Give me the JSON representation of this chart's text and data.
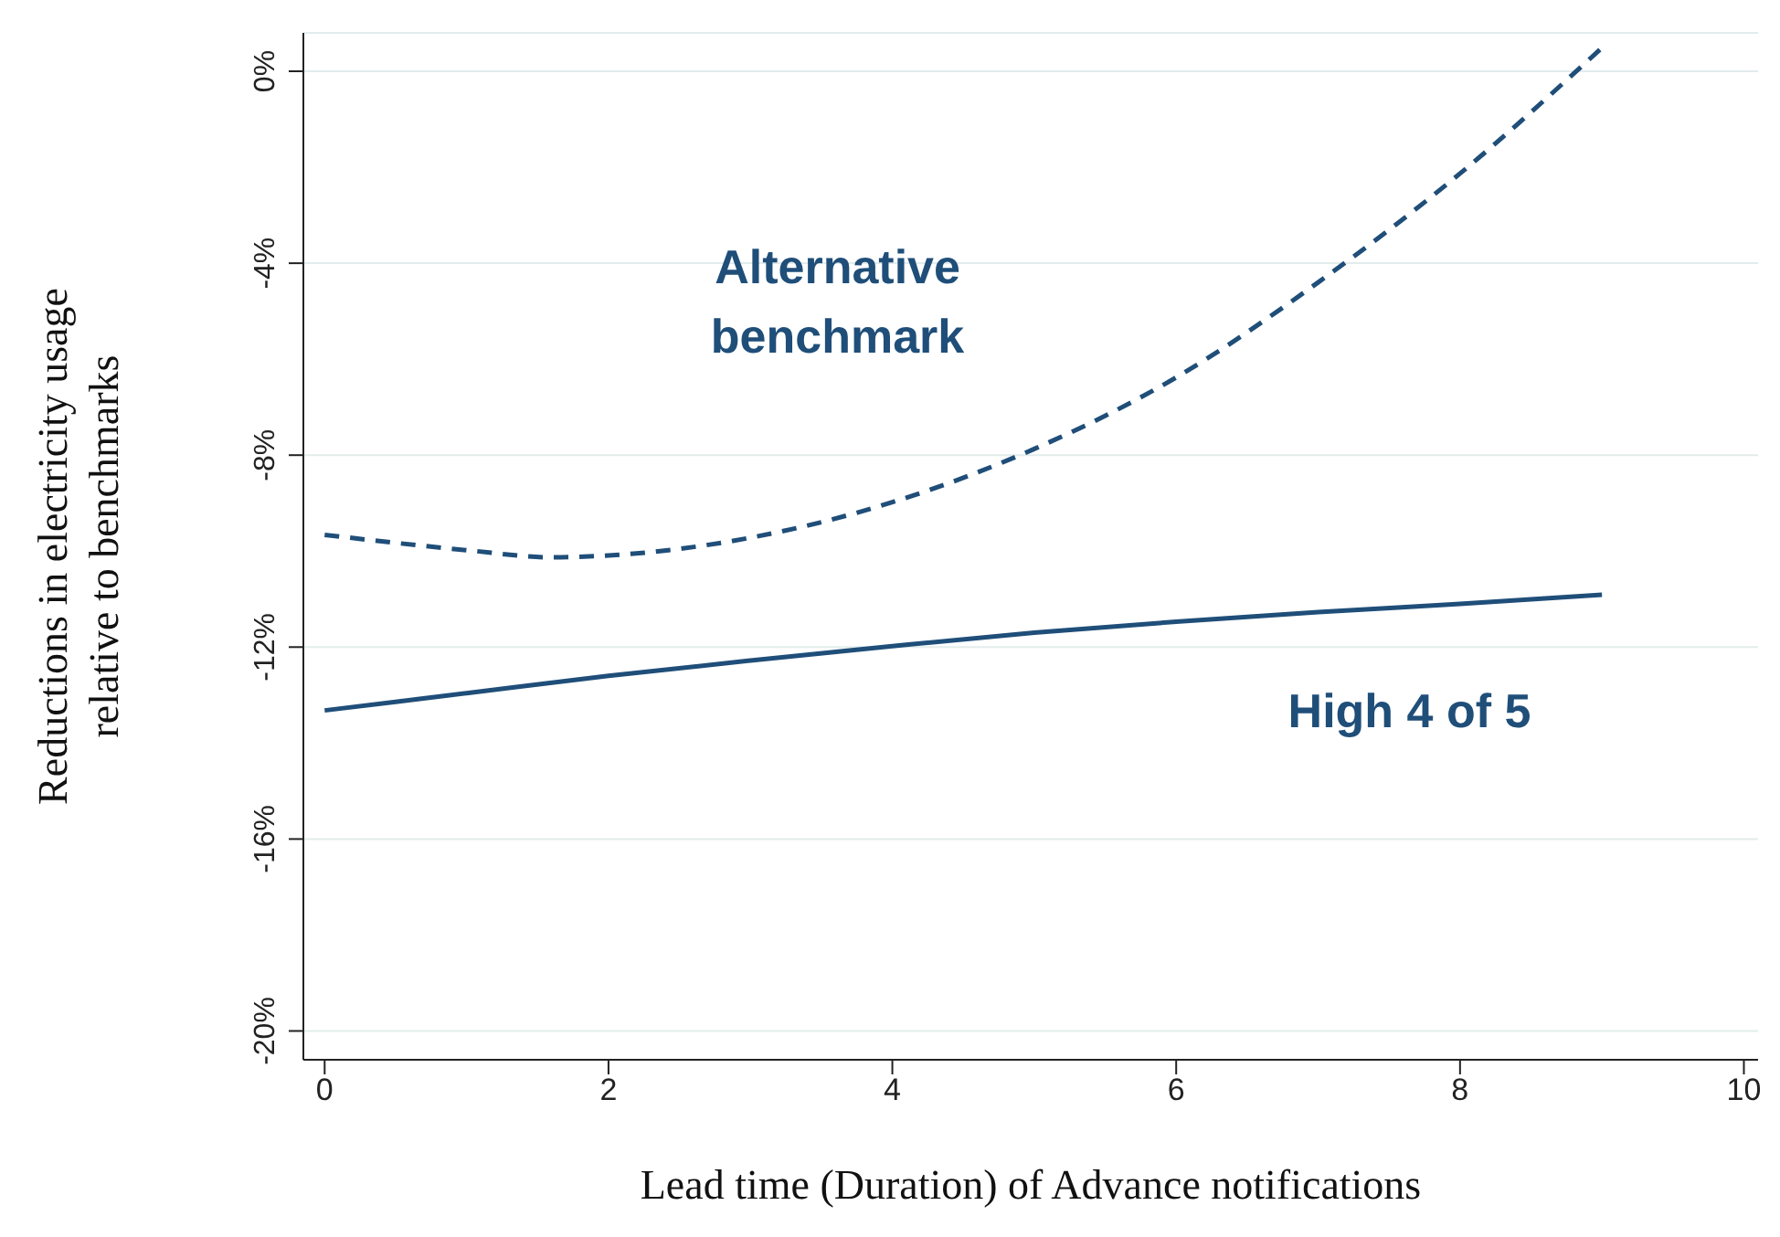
{
  "chart_data": {
    "type": "line",
    "xlabel": "Lead time (Duration) of Advance notifications",
    "ylabel": "Reductions in electricity usage relative to benchmarks",
    "xlim": [
      -0.15,
      10.1
    ],
    "xticks": [
      0,
      2,
      4,
      6,
      8,
      10
    ],
    "ylim": [
      -20.6,
      0.8
    ],
    "yticks": [
      {
        "value": -20,
        "label": "-20%"
      },
      {
        "value": -16,
        "label": "-16%"
      },
      {
        "value": -12,
        "label": "-12%"
      },
      {
        "value": -8,
        "label": "-8%"
      },
      {
        "value": -4,
        "label": "-4%"
      },
      {
        "value": 0,
        "label": "0%"
      }
    ],
    "grid": "y",
    "legend": false,
    "marker": "none",
    "series": [
      {
        "name": "Alternative benchmark",
        "color": "#1f4e79",
        "line_style": "dashed",
        "x": [
          0,
          1,
          1.6,
          2,
          3,
          4,
          5,
          6,
          7,
          8,
          9
        ],
        "values": [
          -9.66,
          -9.98,
          -10.13,
          -10.09,
          -9.72,
          -8.98,
          -7.87,
          -6.38,
          -4.4,
          -2.13,
          0.49
        ]
      },
      {
        "name": "High 4 of 5",
        "color": "#1f4e79",
        "line_style": "solid",
        "x": [
          0,
          1,
          2,
          3,
          4,
          5,
          6,
          7,
          8,
          9
        ],
        "values": [
          -13.32,
          -12.96,
          -12.6,
          -12.28,
          -11.98,
          -11.7,
          -11.47,
          -11.27,
          -11.1,
          -10.91
        ]
      }
    ]
  }
}
